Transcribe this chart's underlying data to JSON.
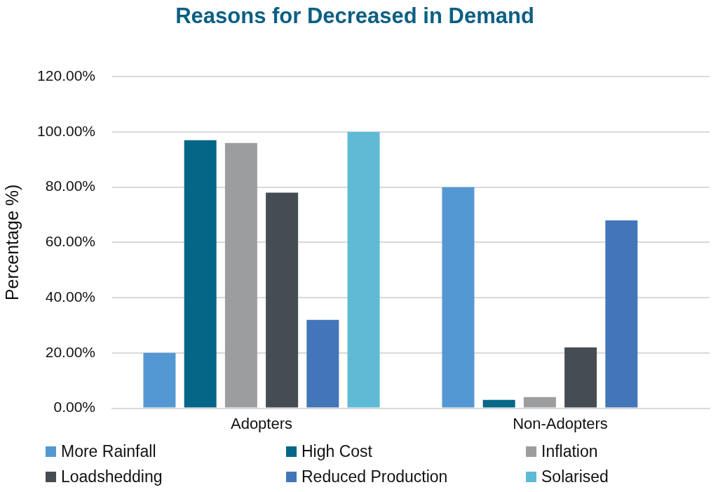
{
  "chart_data": {
    "type": "bar",
    "title": "Reasons for Decreased in Demand",
    "ylabel": "Percentage %)",
    "categories": [
      "Adopters",
      "Non-Adopters"
    ],
    "series": [
      {
        "name": "More Rainfall",
        "color": "#5398d3",
        "values": [
          20,
          80
        ]
      },
      {
        "name": "High Cost",
        "color": "#066688",
        "values": [
          97,
          3
        ]
      },
      {
        "name": "Inflation",
        "color": "#9c9d9f",
        "values": [
          96,
          4
        ]
      },
      {
        "name": "Loadshedding",
        "color": "#454c54",
        "values": [
          78,
          22
        ]
      },
      {
        "name": "Reduced Production",
        "color": "#4375b9",
        "values": [
          32,
          68
        ]
      },
      {
        "name": "Solarised",
        "color": "#5fbad6",
        "values": [
          100,
          null
        ]
      }
    ],
    "ylim": [
      0,
      120
    ],
    "yticks": [
      {
        "value": 0,
        "label": "0.00%"
      },
      {
        "value": 20,
        "label": "20.00%"
      },
      {
        "value": 40,
        "label": "40.00%"
      },
      {
        "value": 60,
        "label": "60.00%"
      },
      {
        "value": 80,
        "label": "80.00%"
      },
      {
        "value": 100,
        "label": "100.00%"
      },
      {
        "value": 120,
        "label": "120.00%"
      }
    ],
    "grid": "y",
    "legend": "bottom"
  }
}
